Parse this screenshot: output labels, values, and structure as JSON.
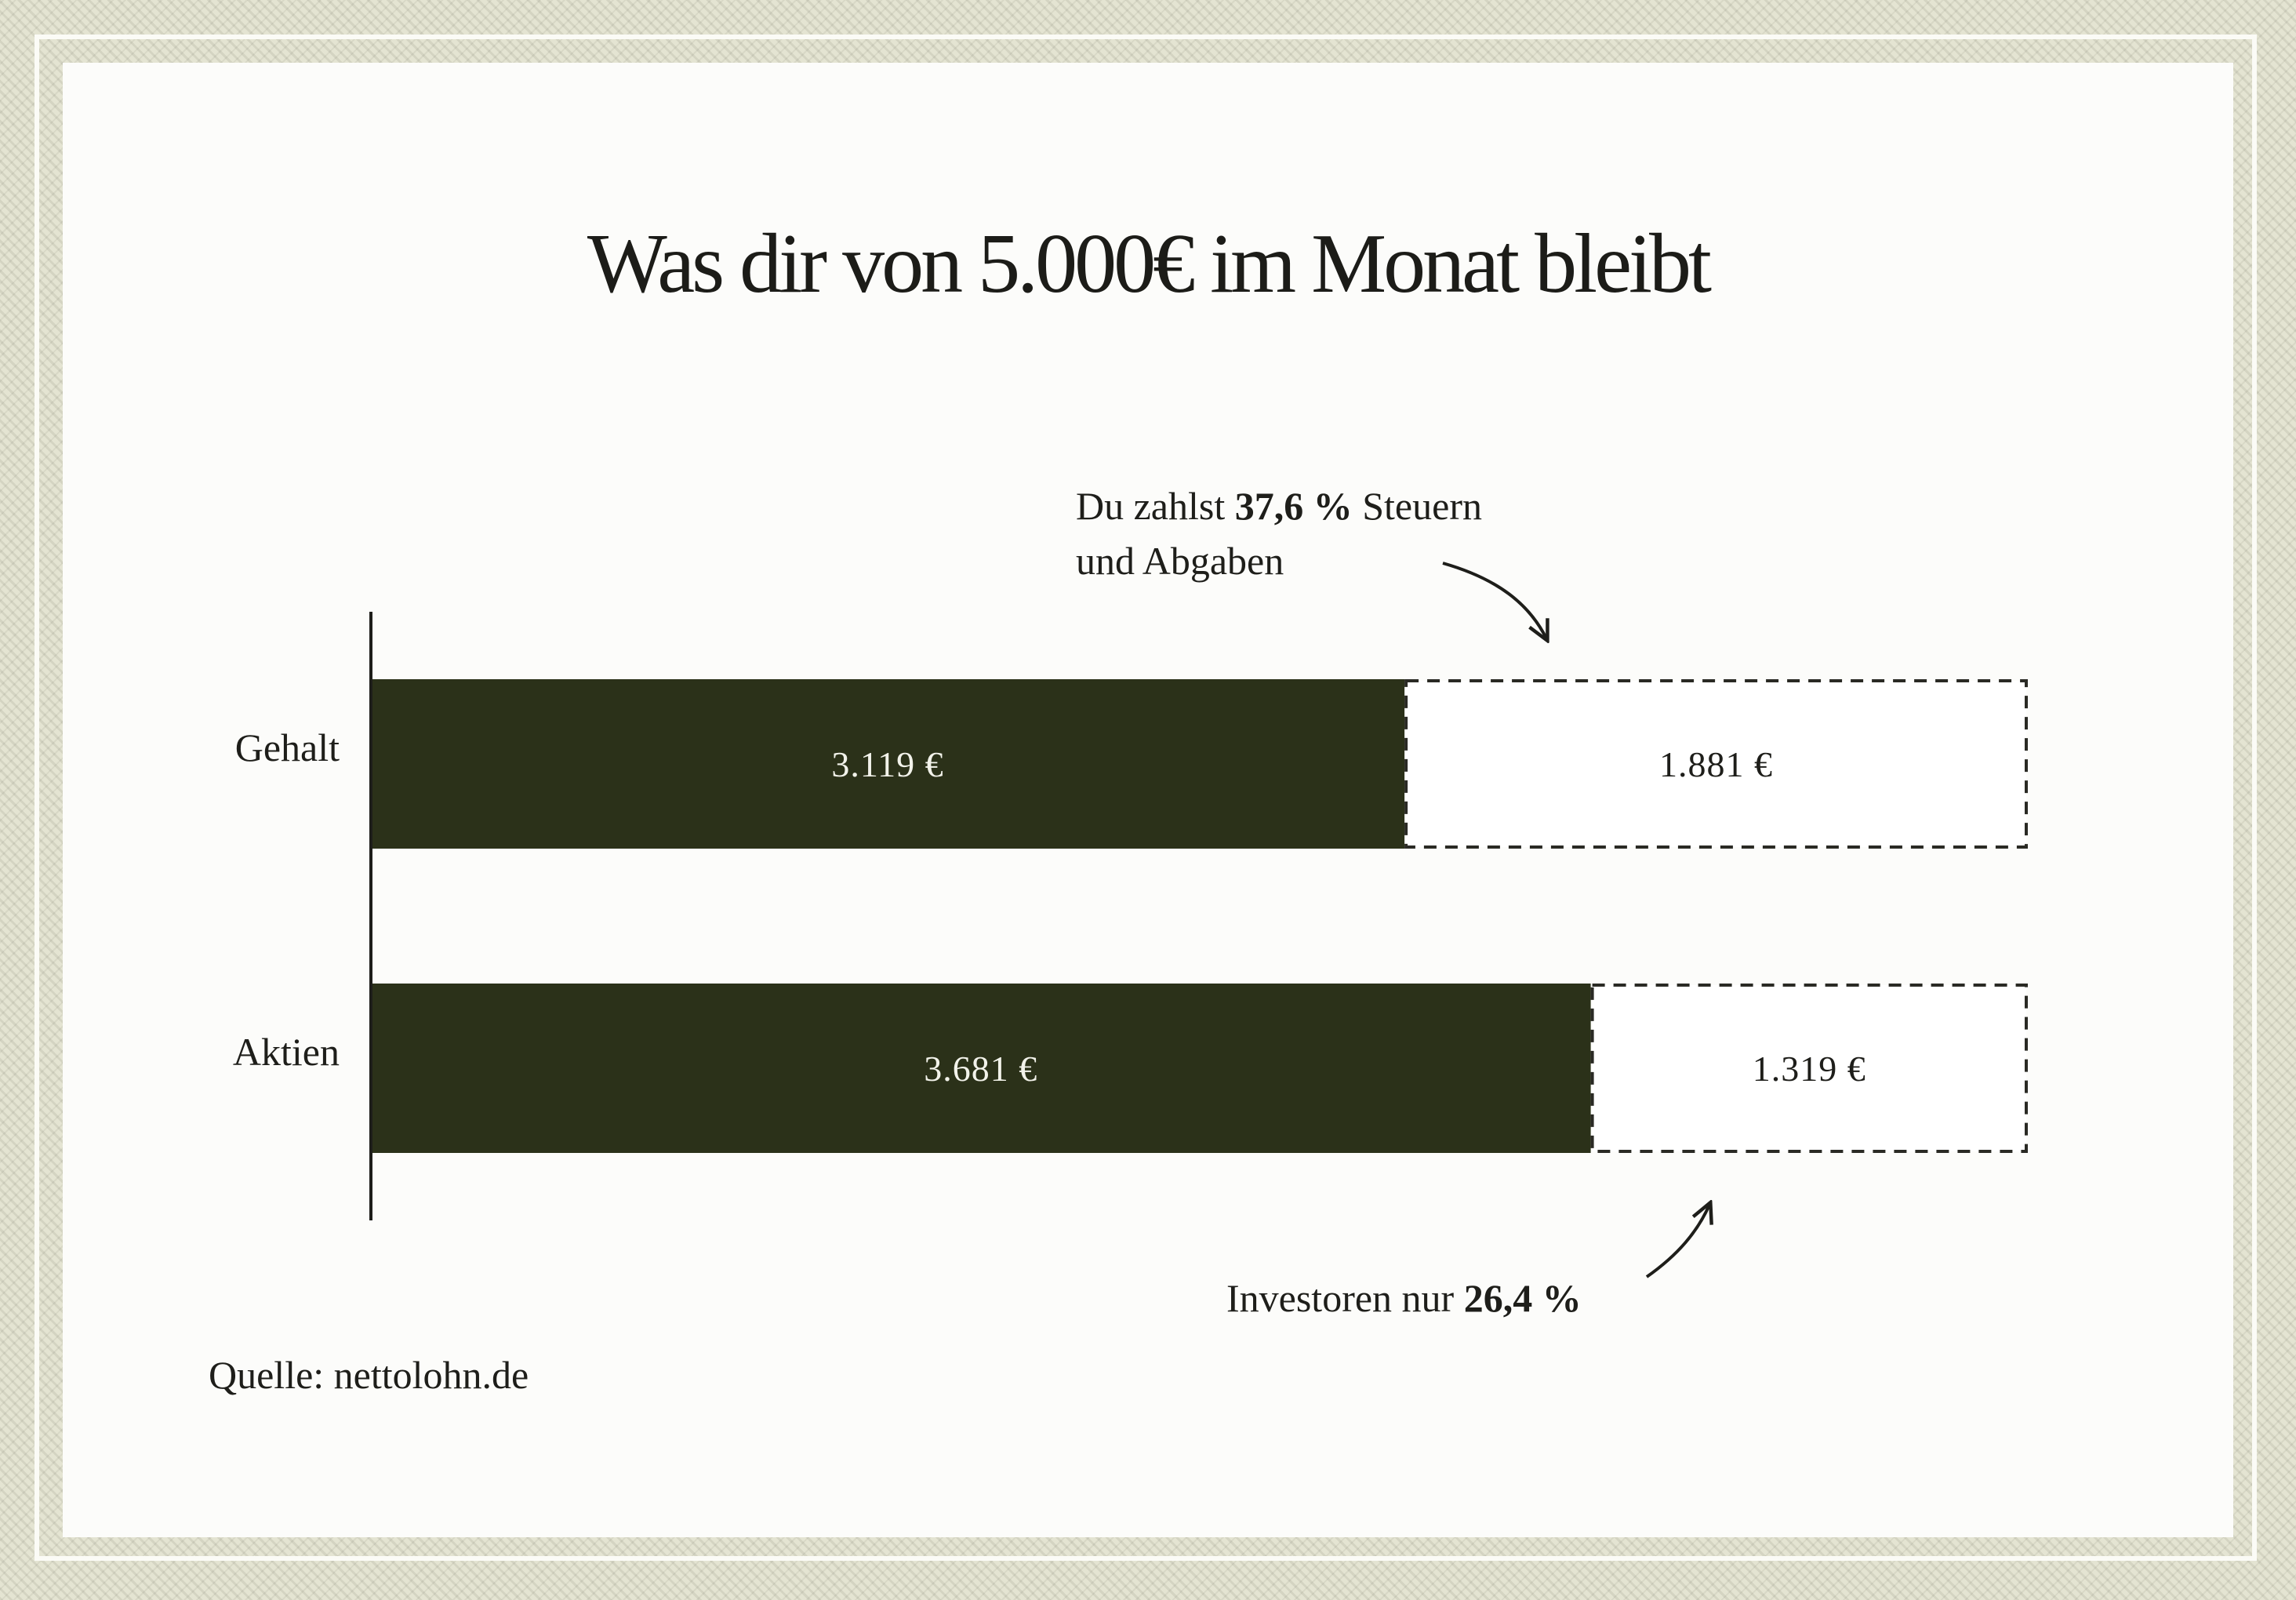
{
  "chart_data": {
    "type": "bar",
    "orientation": "horizontal",
    "stacked": true,
    "title": "Was dir von 5.000€ im Monat bleibt",
    "total": 5000,
    "categories": [
      "Gehalt",
      "Aktien"
    ],
    "series": [
      {
        "values": [
          3119,
          3681
        ],
        "labels": [
          "3.119 €",
          "3.681 €"
        ],
        "color": "#2b3119",
        "style": "solid"
      },
      {
        "values": [
          1881,
          1319
        ],
        "labels": [
          "1.881 €",
          "1.319 €"
        ],
        "color": "#ffffff",
        "style": "dashed-outline"
      }
    ],
    "xlim": [
      0,
      5000
    ],
    "grid": false,
    "legend": "none",
    "annotations": [
      {
        "target": "Gehalt",
        "line1_prefix": "Du zahlst ",
        "line1_bold": "37,6 %",
        "line1_suffix": " Steuern",
        "line2": "und Abgaben"
      },
      {
        "target": "Aktien",
        "prefix": "Investoren nur ",
        "bold": "26,4 %"
      }
    ],
    "source": "Quelle: nettolohn.de"
  },
  "colors": {
    "bar_fill": "#2b3119",
    "axis": "#1e1e1a",
    "dash_outline": "#2a2a24",
    "panel": "#fcfcfa",
    "frame": "#e4e4d2"
  }
}
